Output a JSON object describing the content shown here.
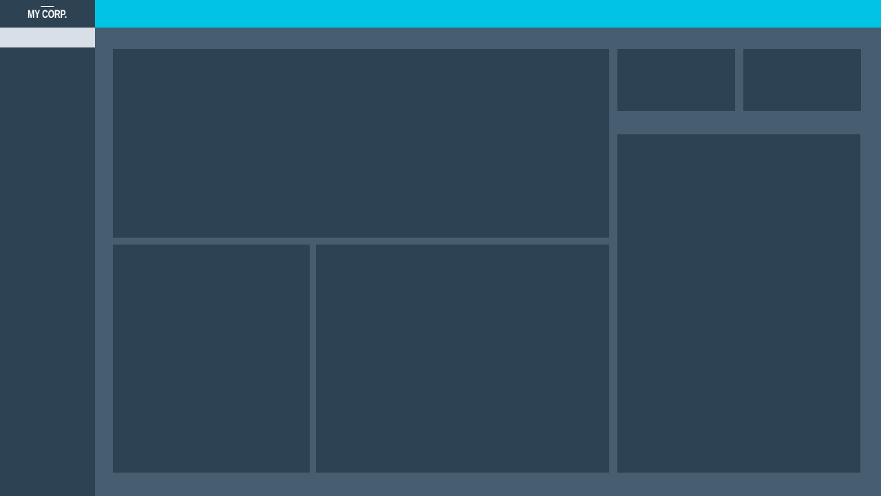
{
  "app": {
    "brand": "MY CORP."
  },
  "colors": {
    "sidebar": "#2d4354",
    "topbar": "#00c3e6",
    "content_bg": "#475d70",
    "panel": "#2d4354",
    "search_bar": "#d8dfe6"
  },
  "panels": {
    "main": "",
    "bottom_left": "",
    "bottom_middle": "",
    "top_small_1": "",
    "top_small_2": "",
    "right_tall": ""
  }
}
